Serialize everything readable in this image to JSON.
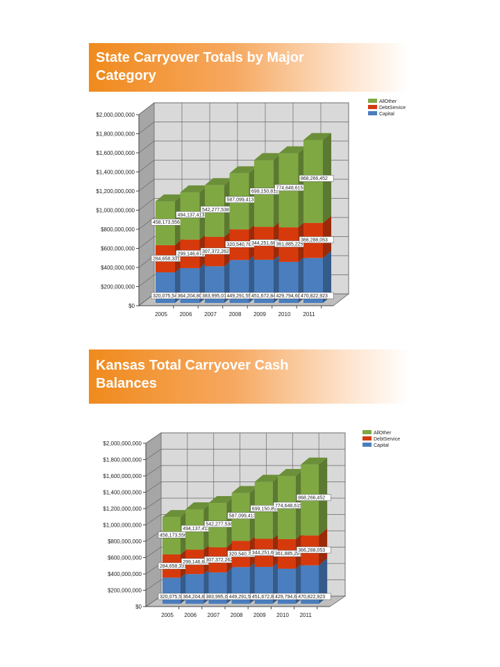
{
  "slides": [
    {
      "title": "State Carryover Totals by Major Category"
    },
    {
      "title": "Kansas Total Carryover Cash Balances"
    }
  ],
  "chart_data": [
    {
      "type": "bar",
      "stacked": true,
      "3d": true,
      "categories": [
        "2005",
        "2006",
        "2007",
        "2008",
        "2009",
        "2010",
        "2011"
      ],
      "series": [
        {
          "name": "Capital",
          "color": "#4a7ebf",
          "values": [
            320075543,
            364204808,
            383995018,
            449291553,
            451672840,
            429794605,
            470822923
          ],
          "labels": [
            "320,075,543",
            "364,204,808",
            "383,995,018",
            "449,291,553",
            "451,672,840",
            "429,794,605",
            "470,822,923"
          ]
        },
        {
          "name": "DebtService",
          "color": "#d63a0c",
          "values": [
            284658331,
            299146671,
            307372262,
            320540785,
            344251687,
            361885225,
            366288053
          ],
          "labels": [
            "284,658,331",
            "299,146,671",
            "307,372,262",
            "320,540,785",
            "344,251,687",
            "361,885,225",
            "366,288,053"
          ]
        },
        {
          "name": "AllOther",
          "color": "#7fa843",
          "values": [
            458173556,
            494137413,
            542277538,
            587099413,
            699150812,
            774648615,
            868266452
          ],
          "labels": [
            "458,173,556",
            "494,137,413",
            "542,277,538",
            "587,099,413",
            "699,150,812",
            "774,648,615",
            "868,266,452"
          ]
        }
      ],
      "yticks": [
        "$0",
        "$200,000,000",
        "$400,000,000",
        "$600,000,000",
        "$800,000,000",
        "$1,000,000,000",
        "$1,200,000,000",
        "$1,400,000,000",
        "$1,600,000,000",
        "$1,800,000,000",
        "$2,000,000,000"
      ],
      "ylim": [
        0,
        2000000000
      ],
      "grid": true,
      "legend": "top-right"
    },
    {
      "type": "bar",
      "stacked": true,
      "3d": true,
      "categories": [
        "2005",
        "2006",
        "2007",
        "2008",
        "2009",
        "2010",
        "2011"
      ],
      "series": [
        {
          "name": "Capital",
          "color": "#4a7ebf",
          "values": [
            320075543,
            364204808,
            383995018,
            449291553,
            451672840,
            429794605,
            470822923
          ],
          "labels": [
            "320,075,543",
            "364,204,808",
            "383,995,018",
            "449,291,553",
            "451,672,840",
            "429,794,605",
            "470,822,923"
          ]
        },
        {
          "name": "DebtService",
          "color": "#d63a0c",
          "values": [
            284658331,
            299146671,
            307372262,
            320540785,
            344251687,
            361885225,
            366288053
          ],
          "labels": [
            "284,658,331",
            "299,146,671",
            "307,372,262",
            "320,540,785",
            "344,251,687",
            "361,885,225",
            "366,288,053"
          ]
        },
        {
          "name": "AllOther",
          "color": "#7fa843",
          "values": [
            458173556,
            494137413,
            542277538,
            587099413,
            699150812,
            774648615,
            868266452
          ],
          "labels": [
            "458,173,556",
            "494,137,413",
            "542,277,538",
            "587,099,413",
            "699,150,812",
            "774,648,615",
            "868,266,452"
          ]
        }
      ],
      "yticks": [
        "$0",
        "$200,000,000",
        "$400,000,000",
        "$600,000,000",
        "$800,000,000",
        "$1,000,000,000",
        "$1,200,000,000",
        "$1,400,000,000",
        "$1,600,000,000",
        "$1,800,000,000",
        "$2,000,000,000"
      ],
      "ylim": [
        0,
        2000000000
      ],
      "grid": true,
      "legend": "top-right"
    }
  ]
}
